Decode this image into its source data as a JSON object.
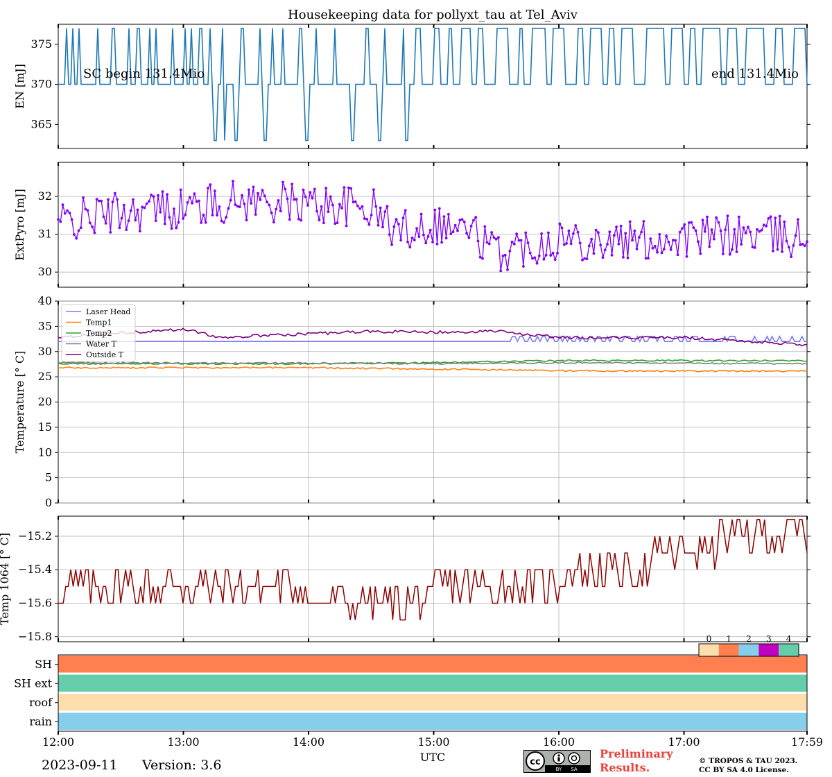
{
  "title": "Housekeeping data for pollyxt_tau at Tel_Aviv",
  "footer": {
    "date": "2023-09-11",
    "version": "Version: 3.6",
    "prelim_line1": "Preliminary",
    "prelim_line2": "Results.",
    "copyright_line1": "© TROPOS & TAU 2023.",
    "copyright_line2": "CC BY SA 4.0 License.",
    "cc_text_by": "BY",
    "cc_text_sa": "SA",
    "cc_logo": "cc-by-sa-icon"
  },
  "chart_data": [
    {
      "id": "energy",
      "type": "line",
      "ylabel": "EN [mJ]",
      "ylim": [
        362,
        377.5
      ],
      "yticks": [
        365,
        370,
        375
      ],
      "color": "#1f77b4",
      "grid": false,
      "annotations": [
        "SC begin 131.4Mio",
        "end 131.4Mio"
      ],
      "baseline": 370,
      "high_value": 377,
      "low_value": 363,
      "high_intervals": [
        [
          0.05,
          0.08
        ],
        [
          0.1,
          0.12
        ],
        [
          0.15,
          0.18
        ],
        [
          0.25,
          0.26
        ],
        [
          0.3,
          0.32
        ],
        [
          0.42,
          0.45
        ],
        [
          0.55,
          0.58
        ],
        [
          0.62,
          0.66
        ],
        [
          0.72,
          0.74
        ],
        [
          0.78,
          0.79
        ],
        [
          0.9,
          0.92
        ],
        [
          1.0,
          1.02
        ],
        [
          1.05,
          1.07
        ],
        [
          1.12,
          1.15
        ],
        [
          1.2,
          1.22
        ],
        [
          1.3,
          1.33
        ],
        [
          1.45,
          1.48
        ],
        [
          1.6,
          1.62
        ],
        [
          1.7,
          1.72
        ],
        [
          1.78,
          1.8
        ],
        [
          1.92,
          1.95
        ],
        [
          2.05,
          2.07
        ],
        [
          2.2,
          2.22
        ],
        [
          2.45,
          2.48
        ],
        [
          2.6,
          2.62
        ],
        [
          2.75,
          2.8
        ],
        [
          2.85,
          2.9
        ],
        [
          3.0,
          3.05
        ],
        [
          3.12,
          3.15
        ],
        [
          3.22,
          3.3
        ],
        [
          3.35,
          3.4
        ],
        [
          3.5,
          3.6
        ],
        [
          3.68,
          3.72
        ],
        [
          3.78,
          3.9
        ],
        [
          3.95,
          4.05
        ],
        [
          4.15,
          4.2
        ],
        [
          4.25,
          4.35
        ],
        [
          4.4,
          4.45
        ],
        [
          4.5,
          4.6
        ],
        [
          4.7,
          4.85
        ],
        [
          4.9,
          5.0
        ],
        [
          5.05,
          5.1
        ],
        [
          5.15,
          5.3
        ],
        [
          5.35,
          5.42
        ],
        [
          5.5,
          5.65
        ],
        [
          5.72,
          5.8
        ],
        [
          5.87,
          5.97
        ]
      ],
      "low_spikes": [
        1.25,
        1.33,
        1.42,
        1.65,
        1.98,
        2.35,
        2.57,
        2.79
      ],
      "x": [
        0,
        5.983
      ],
      "values_note": "stepwise 370/377 with dips to 363"
    },
    {
      "id": "extpyro",
      "type": "line",
      "ylabel": "ExtPyro [mJ]",
      "ylim": [
        29.6,
        32.9
      ],
      "yticks": [
        30,
        31,
        32
      ],
      "color": "#7f00ff",
      "grid": true,
      "x": [
        0,
        5.983
      ],
      "trend": [
        [
          0,
          31.3
        ],
        [
          0.5,
          31.6
        ],
        [
          1.0,
          31.7
        ],
        [
          1.5,
          31.9
        ],
        [
          2.0,
          31.8
        ],
        [
          2.5,
          31.7
        ],
        [
          2.7,
          31.1
        ],
        [
          3.0,
          31.3
        ],
        [
          3.3,
          31.1
        ],
        [
          3.5,
          30.5
        ],
        [
          4.0,
          30.9
        ],
        [
          4.5,
          30.8
        ],
        [
          5.0,
          30.9
        ],
        [
          5.5,
          31.0
        ],
        [
          5.983,
          30.9
        ]
      ],
      "series_values_sampled": "approx. 400 points between 29.8 and 32.8"
    },
    {
      "id": "temperature",
      "type": "line",
      "ylabel": "Temperature [$^\\circ C$]",
      "ylim": [
        0,
        40
      ],
      "yticks": [
        0,
        5,
        10,
        15,
        20,
        25,
        30,
        35,
        40
      ],
      "grid": true,
      "legend_position": "top-left",
      "x": [
        0,
        5.983
      ],
      "series": [
        {
          "name": "Laser Head",
          "color": "#7a7af5",
          "base": 32,
          "from_hour_3_6_toggles_to": 33
        },
        {
          "name": "Temp1",
          "color": "#ff7f0e",
          "points": [
            [
              0,
              26.8
            ],
            [
              2,
              26.8
            ],
            [
              3.5,
              26.4
            ],
            [
              4,
              26.2
            ],
            [
              5.983,
              26.1
            ]
          ]
        },
        {
          "name": "Temp2",
          "color": "#2ca02c",
          "points": [
            [
              0,
              27.6
            ],
            [
              2,
              27.6
            ],
            [
              3,
              27.8
            ],
            [
              4,
              28.2
            ],
            [
              5.983,
              28.2
            ]
          ]
        },
        {
          "name": "Water T",
          "color": "#7f7f7f",
          "points": [
            [
              0,
              27.8
            ],
            [
              2,
              27.7
            ],
            [
              3,
              27.6
            ],
            [
              4,
              27.8
            ],
            [
              5.983,
              27.6
            ]
          ]
        },
        {
          "name": "Outside T",
          "color": "#7b007b",
          "points": [
            [
              0,
              32.9
            ],
            [
              0.6,
              33.8
            ],
            [
              1,
              34.5
            ],
            [
              1.3,
              32.8
            ],
            [
              2,
              33.5
            ],
            [
              2.5,
              34
            ],
            [
              3,
              33.8
            ],
            [
              3.5,
              34
            ],
            [
              4,
              32.8
            ],
            [
              5,
              32.8
            ],
            [
              5.983,
              31.3
            ]
          ]
        }
      ]
    },
    {
      "id": "temp1064",
      "type": "line",
      "ylabel": "Temp 1064 [$^\\circ C$]",
      "ylim": [
        -15.83,
        -15.08
      ],
      "yticks": [
        -15.8,
        -15.6,
        -15.4,
        -15.2
      ],
      "yticklabels": [
        "−15.8",
        "−15.6",
        "−15.4",
        "−15.2"
      ],
      "color": "#8b0000",
      "grid": true,
      "x": [
        0,
        5.983
      ],
      "trend": [
        [
          0,
          -15.5
        ],
        [
          1,
          -15.5
        ],
        [
          2,
          -15.55
        ],
        [
          2.5,
          -15.6
        ],
        [
          3,
          -15.55
        ],
        [
          3.5,
          -15.5
        ],
        [
          4,
          -15.45
        ],
        [
          4.5,
          -15.4
        ],
        [
          5,
          -15.3
        ],
        [
          5.5,
          -15.2
        ],
        [
          5.983,
          -15.2
        ]
      ],
      "step": 0.1
    },
    {
      "id": "status",
      "type": "heatmap",
      "rows": [
        "SH",
        "SH ext",
        "roof",
        "rain"
      ],
      "row_values": [
        1,
        4,
        0,
        2
      ],
      "colorbar_labels": [
        "0",
        "1",
        "2",
        "3",
        "4"
      ],
      "colorbar_colors": [
        "#ffdead",
        "#ff7f50",
        "#87ceeb",
        "#c000c0",
        "#66cdaa"
      ],
      "xlabel": "UTC",
      "xticklabels": [
        "12:00",
        "13:00",
        "14:00",
        "15:00",
        "16:00",
        "17:00",
        "17:59"
      ],
      "x_ticks_hours": [
        0,
        1,
        2,
        3,
        4,
        5,
        5.983
      ]
    }
  ]
}
